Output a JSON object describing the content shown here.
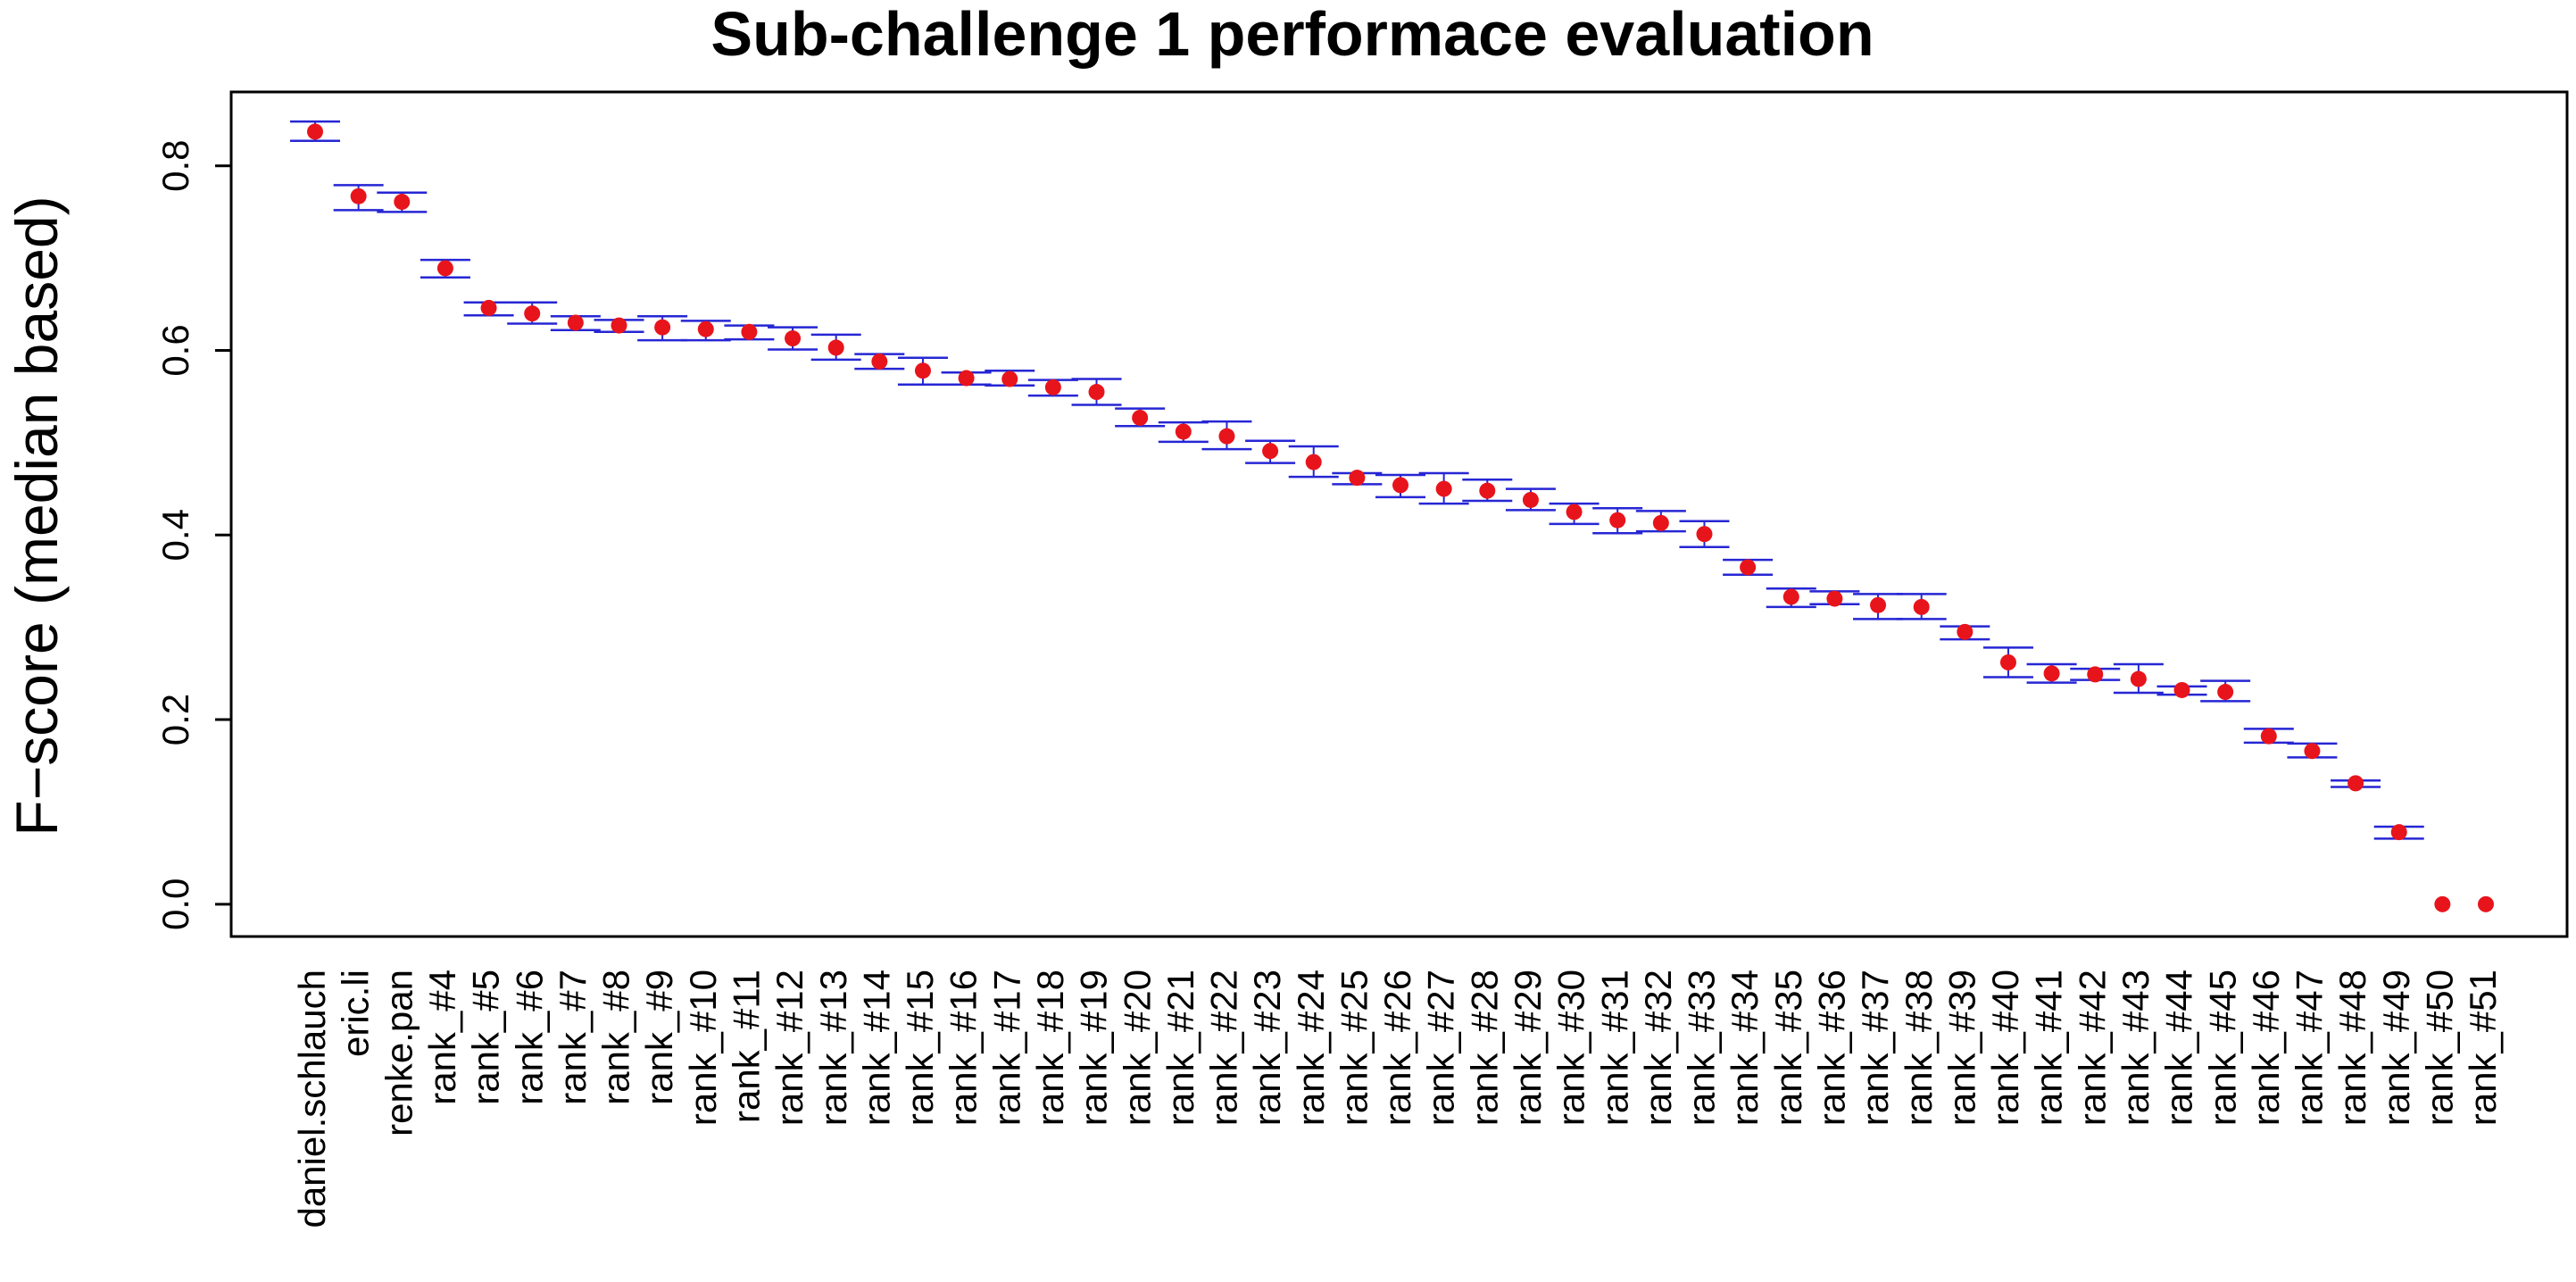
{
  "chart_data": {
    "type": "scatter",
    "title": "Sub-challenge 1 performace evaluation",
    "xlabel": "",
    "ylabel": "F−score (median based)",
    "ylim": [
      -0.035,
      0.88
    ],
    "yticks": [
      0.0,
      0.2,
      0.4,
      0.6,
      0.8
    ],
    "ytick_labels": [
      "0.0",
      "0.2",
      "0.4",
      "0.6",
      "0.8"
    ],
    "grid": false,
    "colors": {
      "point": "#e8141c",
      "errorbar": "#2626d4",
      "axis": "#000000"
    },
    "categories": [
      "daniel.schlauch",
      "eric.li",
      "renke.pan",
      "rank_#4",
      "rank_#5",
      "rank_#6",
      "rank_#7",
      "rank_#8",
      "rank_#9",
      "rank_#10",
      "rank_#11",
      "rank_#12",
      "rank_#13",
      "rank_#14",
      "rank_#15",
      "rank_#16",
      "rank_#17",
      "rank_#18",
      "rank_#19",
      "rank_#20",
      "rank_#21",
      "rank_#22",
      "rank_#23",
      "rank_#24",
      "rank_#25",
      "rank_#26",
      "rank_#27",
      "rank_#28",
      "rank_#29",
      "rank_#30",
      "rank_#31",
      "rank_#32",
      "rank_#33",
      "rank_#34",
      "rank_#35",
      "rank_#36",
      "rank_#37",
      "rank_#38",
      "rank_#39",
      "rank_#40",
      "rank_#41",
      "rank_#42",
      "rank_#43",
      "rank_#44",
      "rank_#45",
      "rank_#46",
      "rank_#47",
      "rank_#48",
      "rank_#49",
      "rank_#50",
      "rank_#51"
    ],
    "values": [
      0.837,
      0.767,
      0.761,
      0.689,
      0.646,
      0.64,
      0.63,
      0.627,
      0.625,
      0.623,
      0.62,
      0.613,
      0.603,
      0.588,
      0.578,
      0.57,
      0.569,
      0.56,
      0.555,
      0.527,
      0.512,
      0.507,
      0.491,
      0.479,
      0.462,
      0.454,
      0.45,
      0.448,
      0.438,
      0.425,
      0.416,
      0.413,
      0.401,
      0.365,
      0.333,
      0.331,
      0.324,
      0.322,
      0.295,
      0.262,
      0.25,
      0.249,
      0.244,
      0.232,
      0.23,
      0.182,
      0.166,
      0.131,
      0.078,
      0.0,
      0.0
    ],
    "upper": [
      0.848,
      0.779,
      0.771,
      0.698,
      0.652,
      0.652,
      0.637,
      0.633,
      0.637,
      0.632,
      0.627,
      0.625,
      0.617,
      0.596,
      0.592,
      0.576,
      0.578,
      0.568,
      0.569,
      0.537,
      0.522,
      0.523,
      0.502,
      0.496,
      0.467,
      0.465,
      0.467,
      0.46,
      0.45,
      0.434,
      0.429,
      0.426,
      0.415,
      0.373,
      0.342,
      0.339,
      0.336,
      0.336,
      0.301,
      0.278,
      0.26,
      0.255,
      0.26,
      0.236,
      0.242,
      0.19,
      0.174,
      0.134,
      0.084,
      null,
      null
    ],
    "lower": [
      0.827,
      0.752,
      0.75,
      0.679,
      0.638,
      0.629,
      0.622,
      0.62,
      0.611,
      0.611,
      0.612,
      0.601,
      0.59,
      0.58,
      0.563,
      0.563,
      0.562,
      0.551,
      0.541,
      0.518,
      0.501,
      0.493,
      0.478,
      0.463,
      0.455,
      0.441,
      0.434,
      0.437,
      0.427,
      0.412,
      0.402,
      0.404,
      0.387,
      0.357,
      0.322,
      0.325,
      0.309,
      0.309,
      0.287,
      0.246,
      0.24,
      0.243,
      0.229,
      0.227,
      0.22,
      0.175,
      0.159,
      0.127,
      0.071,
      null,
      null
    ]
  }
}
